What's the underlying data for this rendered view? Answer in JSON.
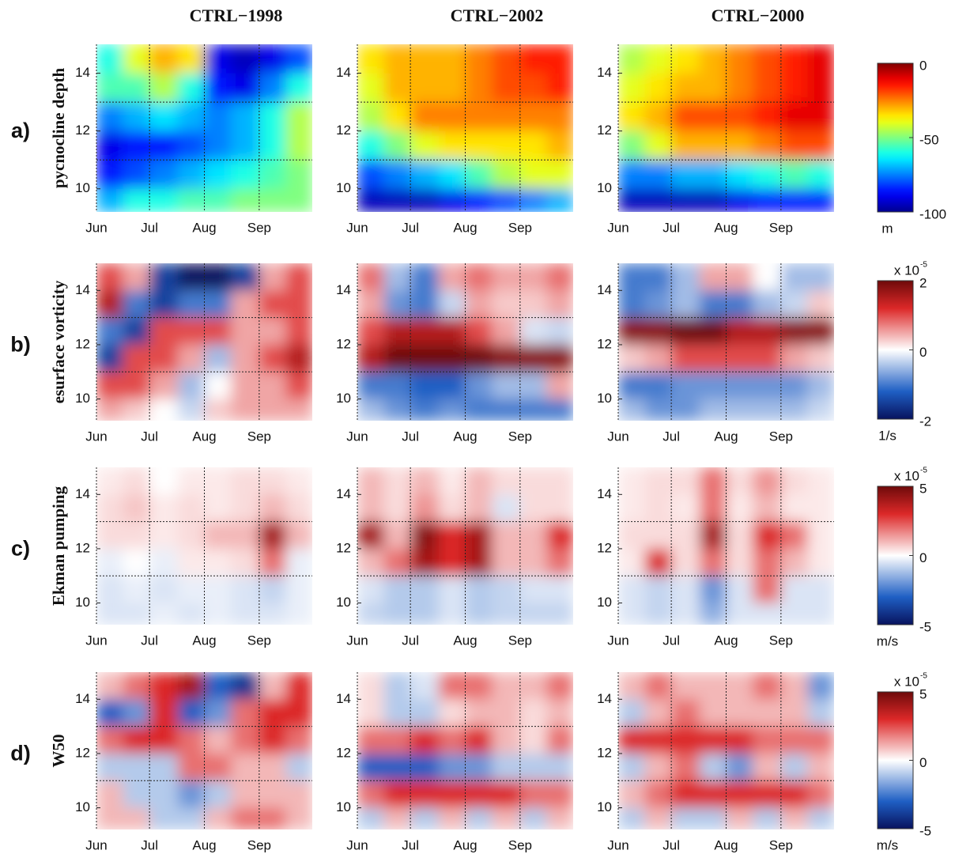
{
  "chart_data": {
    "type": "heatmap",
    "column_titles": [
      "CTRL−1998",
      "CTRL−2002",
      "CTRL−2000"
    ],
    "xlim": [
      0,
      122
    ],
    "xticks": [
      {
        "value": 0,
        "label": "Jun"
      },
      {
        "value": 30,
        "label": "Jul"
      },
      {
        "value": 61,
        "label": "Aug"
      },
      {
        "value": 92,
        "label": "Sep"
      }
    ],
    "ylim": [
      9.2,
      15
    ],
    "yticks": [
      10,
      12,
      14
    ],
    "hlines": [
      11,
      13
    ],
    "x_edges": [
      0,
      15,
      30,
      46,
      61,
      76,
      92,
      107,
      122
    ],
    "y_edges": [
      15,
      14,
      13,
      12,
      11,
      10,
      9.2
    ],
    "rows": [
      {
        "letter": "a)",
        "ylabel": "pycnocline depth",
        "colorbar": {
          "cmap": "jet",
          "clim": [
            -100,
            0
          ],
          "ticks": [
            0,
            -50,
            -100
          ],
          "unit": "m"
        },
        "panels": [
          {
            "values": [
              [
                -60,
                -40,
                -30,
                -35,
                -90,
                -95,
                -90,
                -80
              ],
              [
                -55,
                -55,
                -45,
                -60,
                -85,
                -90,
                -75,
                -60
              ],
              [
                -75,
                -70,
                -65,
                -70,
                -75,
                -70,
                -60,
                -45
              ],
              [
                -90,
                -85,
                -85,
                -80,
                -75,
                -70,
                -60,
                -45
              ],
              [
                -85,
                -80,
                -75,
                -70,
                -65,
                -60,
                -55,
                -50
              ],
              [
                -70,
                -60,
                -60,
                -55,
                -55,
                -50,
                -50,
                -50
              ]
            ]
          },
          {
            "values": [
              [
                -35,
                -30,
                -30,
                -30,
                -25,
                -20,
                -15,
                -15
              ],
              [
                -40,
                -30,
                -30,
                -30,
                -25,
                -20,
                -20,
                -15
              ],
              [
                -45,
                -35,
                -25,
                -25,
                -25,
                -25,
                -25,
                -25
              ],
              [
                -60,
                -50,
                -40,
                -35,
                -35,
                -35,
                -35,
                -30
              ],
              [
                -80,
                -75,
                -70,
                -65,
                -55,
                -45,
                -40,
                -40
              ],
              [
                -95,
                -95,
                -95,
                -90,
                -85,
                -80,
                -75,
                -70
              ]
            ]
          },
          {
            "values": [
              [
                -45,
                -40,
                -35,
                -30,
                -25,
                -20,
                -15,
                -10
              ],
              [
                -40,
                -35,
                -30,
                -30,
                -25,
                -20,
                -15,
                -10
              ],
              [
                -35,
                -30,
                -20,
                -20,
                -20,
                -15,
                -10,
                -10
              ],
              [
                -50,
                -40,
                -30,
                -30,
                -30,
                -25,
                -20,
                -20
              ],
              [
                -75,
                -75,
                -70,
                -70,
                -65,
                -60,
                -55,
                -60
              ],
              [
                -95,
                -95,
                -95,
                -95,
                -90,
                -85,
                -85,
                -85
              ]
            ]
          }
        ]
      },
      {
        "letter": "b)",
        "ylabel": "esurface vorticity",
        "colorbar": {
          "cmap": "bwr",
          "clim": [
            -2,
            2
          ],
          "ticks": [
            2,
            0,
            -2
          ],
          "unit": "1/s",
          "exponent_base": "x 10",
          "exponent": "-5"
        },
        "panels": [
          {
            "values": [
              [
                1,
                0.5,
                -1.5,
                -2,
                -2,
                -1.5,
                0.5,
                1
              ],
              [
                1.5,
                -1,
                -1.5,
                -1,
                -1,
                0.5,
                1,
                1
              ],
              [
                -1,
                -1.5,
                1,
                1,
                1,
                0.5,
                0.5,
                1
              ],
              [
                -1.5,
                1,
                1,
                0.5,
                -0.5,
                0.5,
                1,
                1.5
              ],
              [
                1,
                1,
                0.5,
                -0.5,
                0,
                0.5,
                0.5,
                1
              ],
              [
                0.5,
                0.3,
                0,
                -0.3,
                0.3,
                0.5,
                0.5,
                0.5
              ]
            ]
          },
          {
            "values": [
              [
                0.8,
                -0.5,
                -1,
                0.5,
                0.8,
                0.5,
                0.5,
                0.8
              ],
              [
                0.5,
                -0.8,
                -1,
                -0.3,
                0.5,
                0.3,
                0.3,
                0.5
              ],
              [
                1,
                1.5,
                1.5,
                1.5,
                1,
                0.5,
                -0.2,
                -0.3
              ],
              [
                1.5,
                2,
                2,
                2,
                2,
                1.8,
                1.8,
                1.8
              ],
              [
                -1,
                -1,
                -1.2,
                -1.2,
                -0.8,
                -0.5,
                -0.5,
                0.5
              ],
              [
                -0.5,
                -0.8,
                -1,
                -0.8,
                -1,
                -1,
                -1,
                -1
              ]
            ]
          },
          {
            "values": [
              [
                -1,
                -1,
                -0.5,
                0.5,
                0.5,
                0,
                -0.5,
                -0.5
              ],
              [
                -1,
                -0.8,
                -0.5,
                -1,
                -1,
                -0.5,
                -0.3,
                0.3
              ],
              [
                1.8,
                1.8,
                2,
                2,
                1.5,
                1.5,
                1.8,
                1.8
              ],
              [
                0.3,
                0.5,
                1,
                1,
                1,
                1,
                0.5,
                0.3
              ],
              [
                -1,
                -1,
                -0.8,
                -0.8,
                -0.8,
                -0.8,
                -0.8,
                -0.5
              ],
              [
                -0.5,
                -0.8,
                -0.8,
                -0.5,
                -0.5,
                -0.5,
                -0.5,
                -0.3
              ]
            ]
          }
        ]
      },
      {
        "letter": "c)",
        "ylabel": "Ekman pumping",
        "colorbar": {
          "cmap": "bwr",
          "clim": [
            -5,
            5
          ],
          "ticks": [
            5,
            0,
            -5
          ],
          "unit": "m/s",
          "exponent_base": "x 10",
          "exponent": "-5"
        },
        "panels": [
          {
            "values": [
              [
                0.3,
                0.5,
                0,
                0.3,
                0.3,
                0.5,
                0.5,
                0.3
              ],
              [
                0.5,
                0.8,
                0.3,
                0.5,
                0.3,
                0.5,
                1,
                0.5
              ],
              [
                0.5,
                0.5,
                0.3,
                0.5,
                1,
                1,
                4,
                1
              ],
              [
                -0.3,
                0,
                -0.3,
                0.3,
                0.3,
                0.5,
                2,
                -0.3
              ],
              [
                -0.5,
                -0.3,
                -0.5,
                -0.3,
                -0.3,
                -0.5,
                -0.8,
                -0.3
              ],
              [
                -0.5,
                -0.5,
                -0.3,
                -0.5,
                -0.3,
                -0.5,
                -0.5,
                -0.3
              ]
            ]
          },
          {
            "values": [
              [
                1,
                0.5,
                1,
                0.3,
                1,
                0.5,
                0.5,
                0.5
              ],
              [
                1,
                0.5,
                1.5,
                0.5,
                1,
                -0.5,
                0.5,
                0.5
              ],
              [
                4,
                1,
                4.5,
                3,
                4,
                1,
                1,
                3
              ],
              [
                1,
                2,
                4,
                3,
                4,
                1,
                1,
                2
              ],
              [
                -0.5,
                -1,
                -1,
                -0.5,
                -1,
                -0.8,
                -0.5,
                -0.5
              ],
              [
                -0.8,
                -1,
                -1,
                -0.5,
                -1,
                -0.8,
                -0.8,
                -0.8
              ]
            ]
          },
          {
            "values": [
              [
                0.3,
                0.5,
                0.5,
                2,
                0.5,
                1.5,
                0.5,
                0.3
              ],
              [
                0.3,
                0.5,
                0.3,
                2,
                0.3,
                1,
                0.3,
                0.3
              ],
              [
                0.5,
                0.5,
                0.5,
                4,
                0.5,
                3,
                2,
                0.3
              ],
              [
                0.3,
                3,
                0.5,
                2,
                0.5,
                2,
                1,
                0.3
              ],
              [
                -0.5,
                -0.8,
                -0.5,
                -2,
                -0.5,
                2,
                -0.5,
                -0.5
              ],
              [
                -0.5,
                -0.8,
                -0.5,
                -1.5,
                -0.5,
                -0.5,
                -0.5,
                -0.5
              ]
            ]
          }
        ]
      },
      {
        "letter": "d)",
        "ylabel": "W50",
        "colorbar": {
          "cmap": "bwr",
          "clim": [
            -5,
            5
          ],
          "ticks": [
            5,
            0,
            -5
          ],
          "unit": "m/s",
          "exponent_base": "x 10",
          "exponent": "-5"
        },
        "panels": [
          {
            "values": [
              [
                1,
                2,
                3,
                4,
                -3,
                -4,
                1,
                3
              ],
              [
                -3,
                -2,
                3,
                -3,
                -2,
                2,
                3,
                3
              ],
              [
                2,
                3,
                3,
                2,
                1,
                2,
                3,
                2
              ],
              [
                -1,
                -1,
                -1,
                2,
                2,
                1,
                1,
                -1
              ],
              [
                1,
                -1,
                -1,
                -2,
                -1,
                1,
                1,
                1
              ],
              [
                1,
                1,
                -1,
                -1,
                1,
                2,
                2,
                1
              ]
            ]
          },
          {
            "values": [
              [
                0.5,
                -1,
                -0.5,
                2,
                2,
                1,
                1,
                2
              ],
              [
                0.5,
                -1,
                -1,
                0.5,
                1,
                1,
                0.5,
                1
              ],
              [
                2,
                2,
                3,
                2,
                3,
                1,
                0.5,
                2
              ],
              [
                -3,
                -3,
                -3,
                -2,
                -2,
                -1,
                -1,
                -1
              ],
              [
                2,
                3,
                3,
                3,
                3,
                3,
                2,
                2
              ],
              [
                -1,
                1,
                -1,
                1,
                -1,
                1,
                -1,
                1
              ]
            ]
          },
          {
            "values": [
              [
                1,
                2,
                1,
                1,
                1,
                2,
                1,
                -2
              ],
              [
                -1,
                1,
                2,
                1,
                1,
                1,
                1,
                -1
              ],
              [
                3,
                3,
                3,
                3,
                3,
                2,
                2,
                2
              ],
              [
                -1,
                1,
                2,
                -1,
                -2,
                1,
                -1,
                1
              ],
              [
                1,
                2,
                3,
                3,
                3,
                3,
                3,
                2
              ],
              [
                -1,
                1,
                -1,
                -1,
                1,
                -1,
                1,
                -1
              ]
            ]
          }
        ]
      }
    ]
  }
}
